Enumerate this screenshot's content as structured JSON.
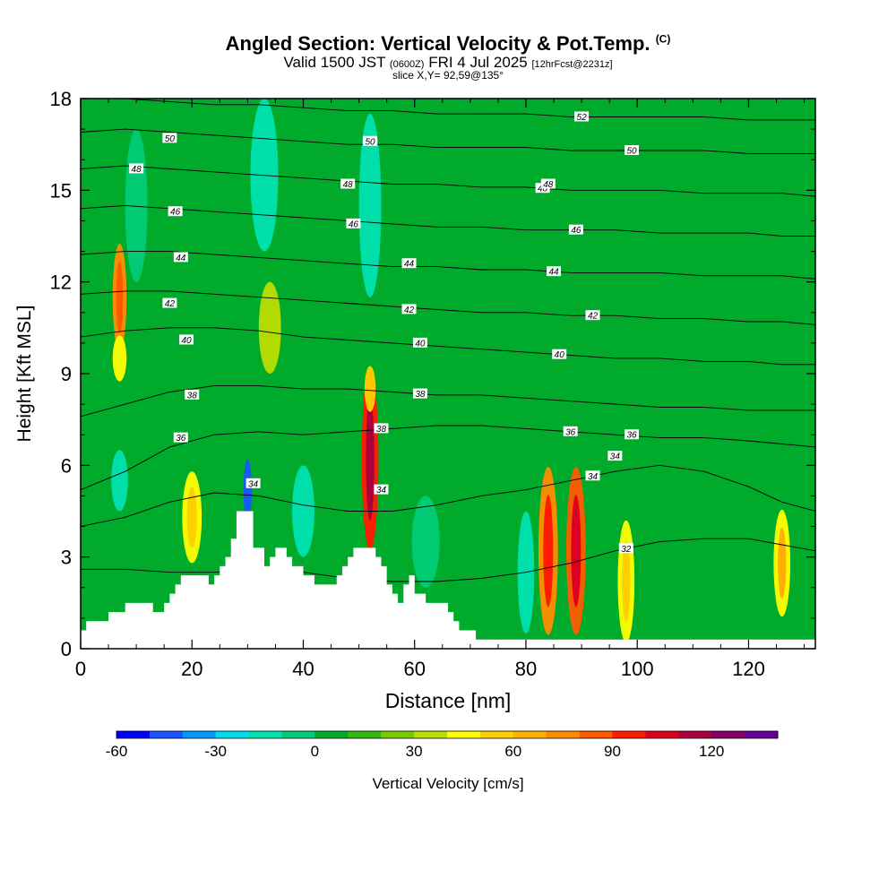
{
  "title": {
    "main": "Angled Section: Vertical Velocity & Pot.Temp.",
    "main_tag": "(C)",
    "valid_prefix": "Valid 1500 JST",
    "valid_utc": "(0600Z)",
    "valid_date": "FRI 4 Jul 2025",
    "forecast": "[12hrFcst@2231z]",
    "slice": "slice X,Y= 92,59@135°"
  },
  "colorbar": {
    "label": "Vertical Velocity [cm/s]",
    "tick_labels": [
      "-60",
      "-30",
      "0",
      "30",
      "60",
      "90",
      "120"
    ],
    "ticks": [
      -60,
      -30,
      0,
      30,
      60,
      90,
      120
    ],
    "min": -60,
    "max": 140,
    "step": 10,
    "colors": [
      "#0000ff",
      "#1a55ff",
      "#0099ff",
      "#00ddee",
      "#00e0b0",
      "#00cc77",
      "#00aa2a",
      "#33bb11",
      "#77cc00",
      "#bbdd00",
      "#ffff00",
      "#ffd000",
      "#ffb000",
      "#ff8c00",
      "#ff5a00",
      "#ff1a00",
      "#dd0020",
      "#aa0040",
      "#880066",
      "#660099"
    ]
  },
  "chart_data": {
    "type": "heatmap",
    "xlabel": "Distance [nm]",
    "ylabel": "Height [Kft MSL]",
    "xlim": [
      0,
      132
    ],
    "ylim": [
      0,
      18
    ],
    "xticks": [
      0,
      20,
      40,
      60,
      80,
      100,
      120
    ],
    "yticks": [
      0,
      3,
      6,
      9,
      12,
      15,
      18
    ],
    "background_value": 5,
    "velocity_cells": [
      {
        "x": 7,
        "y": 11.5,
        "w": 2.5,
        "h": 3.5,
        "v": 70,
        "core": 85
      },
      {
        "x": 7,
        "y": 9.5,
        "w": 2.5,
        "h": 1.5,
        "v": 40
      },
      {
        "x": 20,
        "y": 4.3,
        "w": 3.5,
        "h": 3,
        "v": 45,
        "core": 50
      },
      {
        "x": 52,
        "y": 6.2,
        "w": 3,
        "h": 6,
        "v": 90,
        "core": 110
      },
      {
        "x": 52,
        "y": 8.5,
        "w": 2,
        "h": 1.5,
        "v": 50
      },
      {
        "x": 84,
        "y": 3.2,
        "w": 3.5,
        "h": 5.5,
        "v": 75,
        "core": 95
      },
      {
        "x": 89,
        "y": 3.2,
        "w": 3.5,
        "h": 5.5,
        "v": 80,
        "core": 105
      },
      {
        "x": 98,
        "y": 2.2,
        "w": 3,
        "h": 4,
        "v": 45,
        "core": 55
      },
      {
        "x": 126,
        "y": 2.8,
        "w": 3,
        "h": 3.5,
        "v": 45,
        "core": 60
      },
      {
        "x": 34,
        "y": 10.5,
        "w": 4,
        "h": 3,
        "v": 30
      },
      {
        "x": 30,
        "y": 5.2,
        "w": 1.5,
        "h": 2,
        "v": -50
      },
      {
        "x": 7,
        "y": 5.5,
        "w": 3,
        "h": 2,
        "v": -20
      },
      {
        "x": 10,
        "y": 14.5,
        "w": 4,
        "h": 5,
        "v": -10
      },
      {
        "x": 33,
        "y": 15.5,
        "w": 5,
        "h": 5,
        "v": -20
      },
      {
        "x": 52,
        "y": 14.5,
        "w": 4,
        "h": 6,
        "v": -15
      },
      {
        "x": 80,
        "y": 2.5,
        "w": 3,
        "h": 4,
        "v": -15
      },
      {
        "x": 40,
        "y": 4.5,
        "w": 4,
        "h": 3,
        "v": -12
      },
      {
        "x": 62,
        "y": 3.5,
        "w": 5,
        "h": 3,
        "v": -10
      }
    ],
    "terrain_steps": [
      {
        "x": 0,
        "h": 0.6
      },
      {
        "x": 1,
        "h": 0.9
      },
      {
        "x": 5,
        "h": 1.2
      },
      {
        "x": 8,
        "h": 1.5
      },
      {
        "x": 13,
        "h": 1.2
      },
      {
        "x": 15,
        "h": 1.5
      },
      {
        "x": 16,
        "h": 1.8
      },
      {
        "x": 17,
        "h": 2.1
      },
      {
        "x": 18,
        "h": 2.4
      },
      {
        "x": 23,
        "h": 2.1
      },
      {
        "x": 24,
        "h": 2.4
      },
      {
        "x": 25,
        "h": 2.7
      },
      {
        "x": 26,
        "h": 3.0
      },
      {
        "x": 27,
        "h": 3.6
      },
      {
        "x": 28,
        "h": 4.5
      },
      {
        "x": 31,
        "h": 3.3
      },
      {
        "x": 33,
        "h": 2.7
      },
      {
        "x": 34,
        "h": 3.0
      },
      {
        "x": 35,
        "h": 3.3
      },
      {
        "x": 37,
        "h": 3.0
      },
      {
        "x": 38,
        "h": 2.7
      },
      {
        "x": 40,
        "h": 2.4
      },
      {
        "x": 42,
        "h": 2.1
      },
      {
        "x": 46,
        "h": 2.4
      },
      {
        "x": 47,
        "h": 2.7
      },
      {
        "x": 48,
        "h": 3.0
      },
      {
        "x": 49,
        "h": 3.3
      },
      {
        "x": 53,
        "h": 3.0
      },
      {
        "x": 54,
        "h": 2.7
      },
      {
        "x": 55,
        "h": 2.1
      },
      {
        "x": 56,
        "h": 1.8
      },
      {
        "x": 57,
        "h": 1.5
      },
      {
        "x": 58,
        "h": 2.1
      },
      {
        "x": 59,
        "h": 2.4
      },
      {
        "x": 60,
        "h": 1.8
      },
      {
        "x": 62,
        "h": 1.5
      },
      {
        "x": 66,
        "h": 1.2
      },
      {
        "x": 67,
        "h": 0.9
      },
      {
        "x": 68,
        "h": 0.6
      },
      {
        "x": 71,
        "h": 0.3
      },
      {
        "x": 132,
        "h": 0.3
      }
    ],
    "theta_contours": [
      {
        "value": 32,
        "y": [
          2.6,
          2.6,
          2.5,
          2.5,
          2.6,
          2.5,
          2.3,
          2.2,
          2.2,
          2.3,
          2.5,
          2.8,
          3.2,
          3.5,
          3.6,
          3.6,
          3.4,
          3.2
        ],
        "label_x": 98,
        "label": "32"
      },
      {
        "value": 34,
        "y": [
          4.0,
          4.3,
          4.8,
          5.1,
          5.0,
          4.7,
          4.5,
          4.5,
          4.7,
          5.0,
          5.2,
          5.5,
          5.8,
          6.0,
          5.8,
          5.3,
          4.8,
          4.5
        ],
        "label_x": 92,
        "label": "34"
      },
      {
        "value": 36,
        "y": [
          5.2,
          5.8,
          6.6,
          7.0,
          7.1,
          7.0,
          7.1,
          7.2,
          7.3,
          7.3,
          7.2,
          7.1,
          7.0,
          6.9,
          6.9,
          6.8,
          6.7,
          6.6
        ],
        "label_x": 88,
        "label": "36"
      },
      {
        "value": 38,
        "y": [
          7.6,
          8.0,
          8.4,
          8.6,
          8.6,
          8.5,
          8.5,
          8.4,
          8.3,
          8.3,
          8.2,
          8.1,
          8.0,
          7.9,
          7.9,
          7.8,
          7.8,
          7.8
        ],
        "label_x": 61,
        "label": "38"
      },
      {
        "value": 40,
        "y": [
          10.2,
          10.4,
          10.5,
          10.5,
          10.4,
          10.2,
          10.1,
          10.0,
          9.9,
          9.8,
          9.7,
          9.6,
          9.5,
          9.5,
          9.4,
          9.4,
          9.3,
          9.3
        ],
        "label_x": 86,
        "label": "40"
      },
      {
        "value": 42,
        "y": [
          11.6,
          11.7,
          11.7,
          11.6,
          11.5,
          11.4,
          11.3,
          11.2,
          11.1,
          11.0,
          11.0,
          10.9,
          10.9,
          10.8,
          10.8,
          10.7,
          10.7,
          10.6
        ],
        "label_x": 92,
        "label": "42"
      },
      {
        "value": 44,
        "y": [
          12.9,
          13.0,
          13.0,
          12.9,
          12.8,
          12.7,
          12.6,
          12.5,
          12.5,
          12.4,
          12.4,
          12.3,
          12.3,
          12.3,
          12.2,
          12.2,
          12.2,
          12.1
        ],
        "label_x": 85,
        "label": "44"
      },
      {
        "value": 46,
        "y": [
          14.4,
          14.5,
          14.4,
          14.3,
          14.2,
          14.1,
          14.0,
          13.9,
          13.8,
          13.8,
          13.7,
          13.7,
          13.7,
          13.6,
          13.6,
          13.6,
          13.5,
          13.5
        ],
        "label_x": 89,
        "label": "46"
      },
      {
        "value": 48,
        "y": [
          15.7,
          15.8,
          15.7,
          15.6,
          15.5,
          15.4,
          15.3,
          15.2,
          15.2,
          15.1,
          15.1,
          15.0,
          15.0,
          15.0,
          14.9,
          14.9,
          14.9,
          14.8
        ],
        "label_x": 83,
        "label": "48"
      },
      {
        "value": 50,
        "y": [
          16.9,
          17.0,
          16.9,
          16.8,
          16.7,
          16.6,
          16.5,
          16.5,
          16.4,
          16.4,
          16.4,
          16.3,
          16.3,
          16.3,
          16.3,
          16.2,
          16.2,
          16.2
        ],
        "label_x": 99,
        "label": "50"
      },
      {
        "value": 52,
        "y": [
          18.0,
          18.0,
          17.9,
          17.8,
          17.8,
          17.7,
          17.6,
          17.6,
          17.5,
          17.5,
          17.5,
          17.4,
          17.4,
          17.4,
          17.4,
          17.3,
          17.3,
          17.3
        ],
        "label_x": 90,
        "label": "52"
      }
    ],
    "contour_x": [
      0,
      8,
      16,
      24,
      32,
      40,
      48,
      56,
      64,
      72,
      80,
      88,
      96,
      104,
      112,
      120,
      126,
      132
    ],
    "extra_contour_labels": [
      {
        "x": 16,
        "y": 16.7,
        "text": "50"
      },
      {
        "x": 10,
        "y": 15.7,
        "text": "48"
      },
      {
        "x": 17,
        "y": 14.3,
        "text": "46"
      },
      {
        "x": 18,
        "y": 12.8,
        "text": "44"
      },
      {
        "x": 16,
        "y": 11.3,
        "text": "42"
      },
      {
        "x": 19,
        "y": 10.1,
        "text": "40"
      },
      {
        "x": 20,
        "y": 8.3,
        "text": "38"
      },
      {
        "x": 18,
        "y": 6.9,
        "text": "36"
      },
      {
        "x": 52,
        "y": 16.6,
        "text": "50"
      },
      {
        "x": 48,
        "y": 15.2,
        "text": "48"
      },
      {
        "x": 49,
        "y": 13.9,
        "text": "46"
      },
      {
        "x": 59,
        "y": 12.6,
        "text": "44"
      },
      {
        "x": 59,
        "y": 11.1,
        "text": "42"
      },
      {
        "x": 61,
        "y": 10.0,
        "text": "40"
      },
      {
        "x": 54,
        "y": 7.2,
        "text": "38"
      },
      {
        "x": 54,
        "y": 5.2,
        "text": "34"
      },
      {
        "x": 31,
        "y": 5.4,
        "text": "34"
      },
      {
        "x": 84,
        "y": 15.2,
        "text": "48"
      },
      {
        "x": 99,
        "y": 7.0,
        "text": "36"
      },
      {
        "x": 96,
        "y": 6.3,
        "text": "34"
      }
    ]
  }
}
